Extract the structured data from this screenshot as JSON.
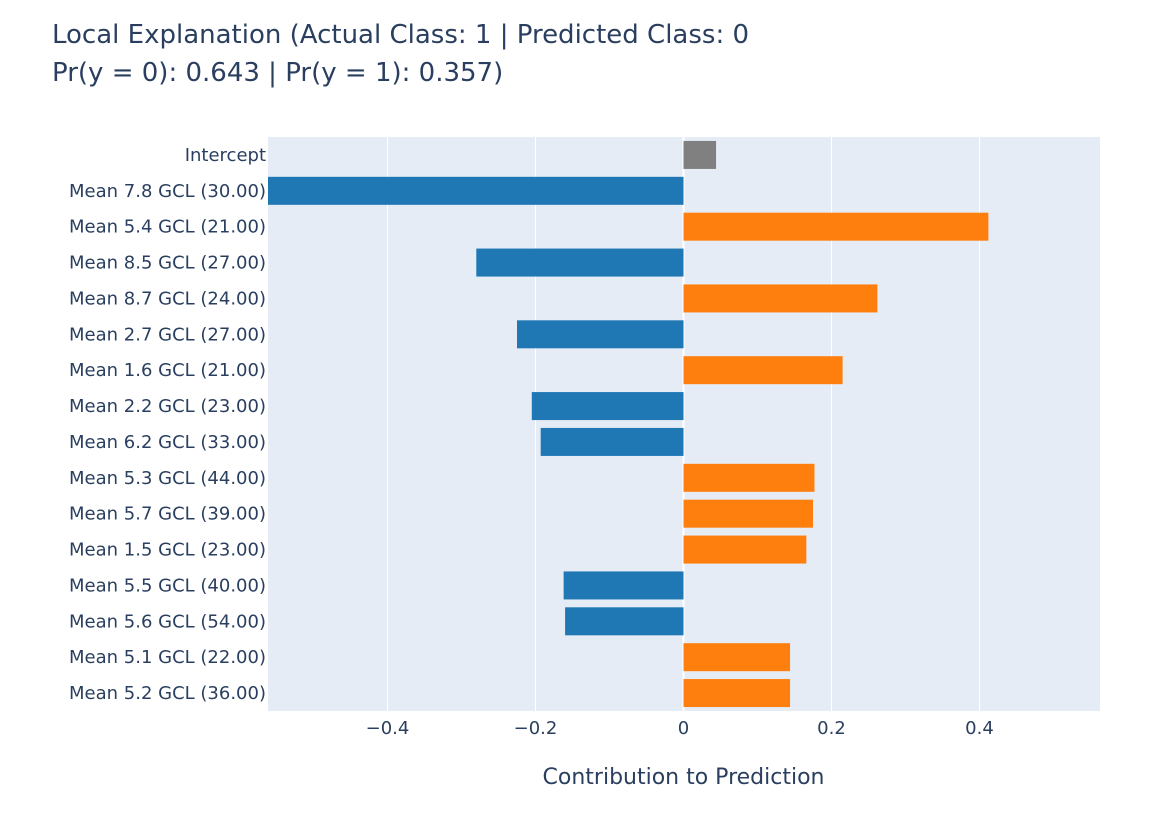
{
  "chart_data": {
    "type": "bar",
    "orientation": "horizontal",
    "title_line1": "Local Explanation (Actual Class: 1 | Predicted Class: 0",
    "title_line2": "Pr(y = 0): 0.643 | Pr(y = 1): 0.357)",
    "xlabel": "Contribution to Prediction",
    "ylabel": "",
    "xlim": [
      -0.56,
      0.56
    ],
    "xticks": [
      {
        "value": -0.4,
        "label": "−0.4"
      },
      {
        "value": -0.2,
        "label": "−0.2"
      },
      {
        "value": 0,
        "label": "0"
      },
      {
        "value": 0.2,
        "label": "0.2"
      },
      {
        "value": 0.4,
        "label": "0.4"
      }
    ],
    "grid": true,
    "colors": {
      "positive": "#ff7f0e",
      "negative": "#1f77b4",
      "intercept": "#808080",
      "plot_bg": "#e5ecf6",
      "grid": "#ffffff"
    },
    "categories": [
      "Intercept",
      "Mean 7.8 GCL (30.00)",
      "Mean 5.4 GCL (21.00)",
      "Mean 8.5 GCL (27.00)",
      "Mean 8.7 GCL (24.00)",
      "Mean 2.7 GCL (27.00)",
      "Mean 1.6 GCL (21.00)",
      "Mean 2.2 GCL (23.00)",
      "Mean 6.2 GCL (33.00)",
      "Mean 5.3 GCL (44.00)",
      "Mean 5.7 GCL (39.00)",
      "Mean 1.5 GCL (23.00)",
      "Mean 5.5 GCL (40.00)",
      "Mean 5.6 GCL (54.00)",
      "Mean 5.1 GCL (22.00)",
      "Mean 5.2 GCL (36.00)"
    ],
    "values": [
      0.044,
      -0.6,
      0.412,
      -0.28,
      0.262,
      -0.225,
      0.215,
      -0.205,
      -0.193,
      0.177,
      0.175,
      0.166,
      -0.162,
      -0.16,
      0.144,
      0.144
    ],
    "kinds": [
      "intercept",
      "feature",
      "feature",
      "feature",
      "feature",
      "feature",
      "feature",
      "feature",
      "feature",
      "feature",
      "feature",
      "feature",
      "feature",
      "feature",
      "feature",
      "feature"
    ]
  }
}
